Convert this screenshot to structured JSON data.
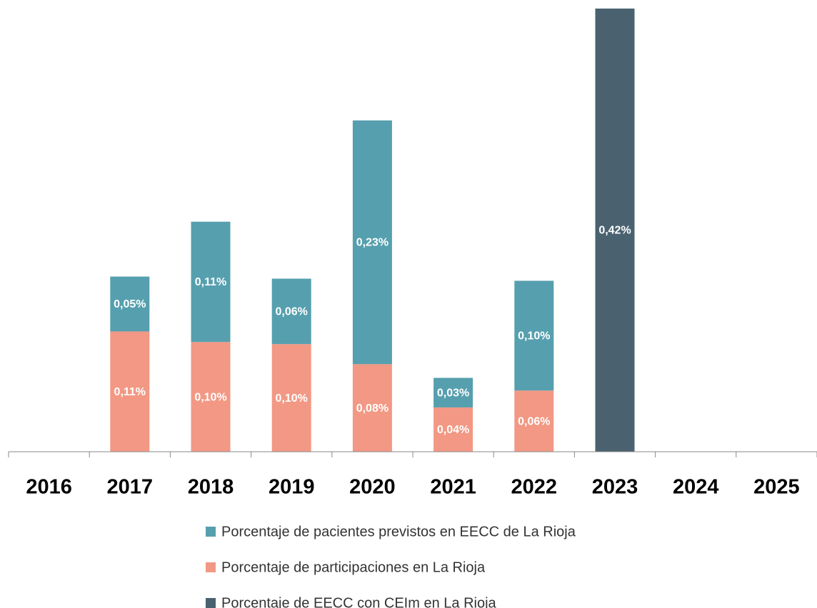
{
  "chart_data": {
    "type": "stacked_bar",
    "categories": [
      "2016",
      "2017",
      "2018",
      "2019",
      "2020",
      "2021",
      "2022",
      "2023",
      "2024",
      "2025"
    ],
    "series": [
      {
        "name": "Porcentaje de pacientes previstos en EECC de La Rioja",
        "color": "#569fae",
        "values": [
          null,
          0.052,
          0.114,
          0.062,
          0.231,
          0.028,
          0.104,
          null,
          null,
          null
        ],
        "value_labels": [
          null,
          "0,05%",
          "0,11%",
          "0,06%",
          "0,23%",
          "0,03%",
          "0,10%",
          null,
          null,
          null
        ]
      },
      {
        "name": "Porcentaje de participaciones en La Rioja",
        "color": "#f29884",
        "values": [
          null,
          0.114,
          0.104,
          0.102,
          0.083,
          0.042,
          0.058,
          null,
          null,
          null
        ],
        "value_labels": [
          null,
          "0,11%",
          "0,10%",
          "0,10%",
          "0,08%",
          "0,04%",
          "0,06%",
          null,
          null,
          null
        ]
      },
      {
        "name": "Porcentaje de EECC con CEIm en La Rioja",
        "color": "#4a6270",
        "values": [
          null,
          null,
          null,
          null,
          null,
          null,
          null,
          0.42,
          null,
          null
        ],
        "value_labels": [
          null,
          null,
          null,
          null,
          null,
          null,
          null,
          "0,42%",
          null,
          null
        ]
      }
    ],
    "ylim": [
      0,
      0.42
    ]
  }
}
